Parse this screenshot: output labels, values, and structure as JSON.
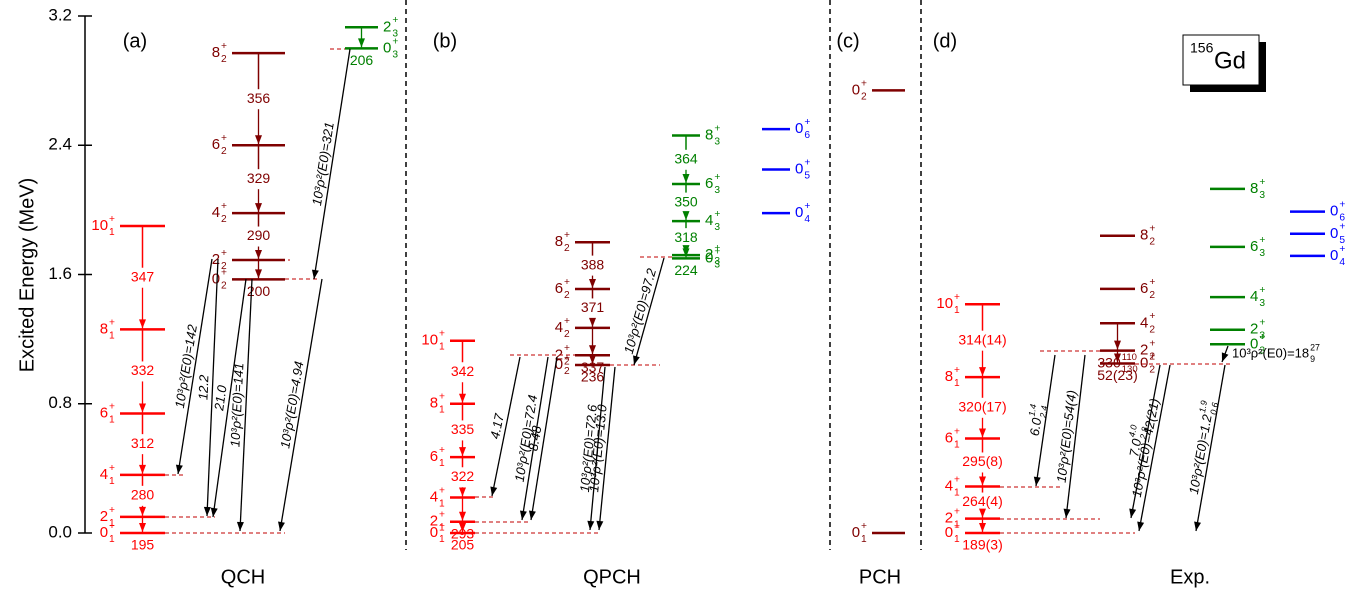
{
  "chart_data": {
    "type": "level-scheme",
    "ylabel": "Excited Energy (MeV)",
    "ylim": [
      0,
      3.2
    ],
    "yticks": [
      {
        "value": 0,
        "label": "0.0"
      },
      {
        "value": 0.8,
        "label": "0.8"
      },
      {
        "value": 1.6,
        "label": "1.6"
      },
      {
        "value": 2.4,
        "label": "2.4"
      },
      {
        "value": 3.2,
        "label": "3.2"
      }
    ],
    "nucleus": {
      "mass": "156",
      "symbol": "Gd"
    },
    "panels": [
      {
        "tag": "(a)",
        "name": "QCH",
        "bands": [
          {
            "color": "#ff0000",
            "levels": [
              {
                "j": "0",
                "p": "+",
                "k": "1",
                "energy": 0
              },
              {
                "j": "2",
                "p": "+",
                "k": "1",
                "energy": 0.1
              },
              {
                "j": "4",
                "p": "+",
                "k": "1",
                "energy": 0.36
              },
              {
                "j": "6",
                "p": "+",
                "k": "1",
                "energy": 0.74
              },
              {
                "j": "8",
                "p": "+",
                "k": "1",
                "energy": 1.26
              },
              {
                "j": "10",
                "p": "+",
                "k": "1",
                "energy": 1.9
              }
            ],
            "transitions": [
              {
                "text": "195"
              },
              {
                "text": "280"
              },
              {
                "text": "312"
              },
              {
                "text": "332"
              },
              {
                "text": "347"
              }
            ]
          },
          {
            "color": "#7f0000",
            "levels": [
              {
                "j": "0",
                "p": "+",
                "k": "2",
                "energy": 1.57
              },
              {
                "j": "2",
                "p": "+",
                "k": "2",
                "energy": 1.69
              },
              {
                "j": "4",
                "p": "+",
                "k": "2",
                "energy": 1.98
              },
              {
                "j": "6",
                "p": "+",
                "k": "2",
                "energy": 2.4
              },
              {
                "j": "8",
                "p": "+",
                "k": "2",
                "energy": 2.97
              }
            ],
            "transitions": [
              {
                "text": "200"
              },
              {
                "text": "290"
              },
              {
                "text": "329"
              },
              {
                "text": "356"
              }
            ]
          },
          {
            "color": "#008000",
            "levels": [
              {
                "j": "0",
                "p": "+",
                "k": "3",
                "energy": 3.0
              },
              {
                "j": "2",
                "p": "+",
                "k": "3",
                "energy": 3.13
              }
            ],
            "transitions": [
              {
                "text": "206"
              }
            ]
          }
        ],
        "e0": [
          {
            "text": "10³ρ²(E0)=142"
          },
          {
            "text": "12.2"
          },
          {
            "text": "21.0"
          },
          {
            "text": "10³ρ²(E0)=141"
          },
          {
            "text": "10³ρ²(E0)=4.94"
          },
          {
            "text": "10³ρ²(E0)=321"
          }
        ]
      },
      {
        "tag": "(b)",
        "name": "QPCH",
        "bands": [
          {
            "color": "#ff0000",
            "levels": [
              {
                "j": "0",
                "p": "+",
                "k": "1",
                "energy": 0
              },
              {
                "j": "2",
                "p": "+",
                "k": "1",
                "energy": 0.07
              },
              {
                "j": "4",
                "p": "+",
                "k": "1",
                "energy": 0.22
              },
              {
                "j": "6",
                "p": "+",
                "k": "1",
                "energy": 0.47
              },
              {
                "j": "8",
                "p": "+",
                "k": "1",
                "energy": 0.8
              },
              {
                "j": "10",
                "p": "+",
                "k": "1",
                "energy": 1.19
              }
            ],
            "transitions": [
              {
                "text": "205"
              },
              {
                "text": "293"
              },
              {
                "text": "322"
              },
              {
                "text": "335"
              },
              {
                "text": "342"
              }
            ]
          },
          {
            "color": "#7f0000",
            "levels": [
              {
                "j": "0",
                "p": "+",
                "k": "2",
                "energy": 1.04
              },
              {
                "j": "2",
                "p": "+",
                "k": "2",
                "energy": 1.1
              },
              {
                "j": "4",
                "p": "+",
                "k": "2",
                "energy": 1.27
              },
              {
                "j": "6",
                "p": "+",
                "k": "2",
                "energy": 1.51
              },
              {
                "j": "8",
                "p": "+",
                "k": "2",
                "energy": 1.8
              }
            ],
            "transitions": [
              {
                "text": "236"
              },
              {
                "text": "337"
              },
              {
                "text": "371"
              },
              {
                "text": "388"
              }
            ]
          },
          {
            "color": "#008000",
            "levels": [
              {
                "j": "0",
                "p": "+",
                "k": "3",
                "energy": 1.7
              },
              {
                "j": "2",
                "p": "+",
                "k": "3",
                "energy": 1.72
              },
              {
                "j": "4",
                "p": "+",
                "k": "3",
                "energy": 1.93
              },
              {
                "j": "6",
                "p": "+",
                "k": "3",
                "energy": 2.16
              },
              {
                "j": "8",
                "p": "+",
                "k": "3",
                "energy": 2.46
              }
            ],
            "transitions": [
              {
                "text": "224"
              },
              {
                "text": "318"
              },
              {
                "text": "350"
              },
              {
                "text": "364"
              }
            ]
          },
          {
            "color": "#0000ff",
            "levels": [
              {
                "j": "0",
                "p": "+",
                "k": "4",
                "energy": 1.98
              },
              {
                "j": "0",
                "p": "+",
                "k": "5",
                "energy": 2.25
              },
              {
                "j": "0",
                "p": "+",
                "k": "6",
                "energy": 2.5
              }
            ],
            "transitions": []
          }
        ],
        "e0": [
          {
            "text": "4.17"
          },
          {
            "text": "10³ρ²(E0)=72.4"
          },
          {
            "text": "8.48"
          },
          {
            "text": "10³ρ²(E0)=72.6"
          },
          {
            "text": "10³ρ²(E0)=13.0"
          },
          {
            "text": "10³ρ²(E0)=97.2"
          }
        ]
      },
      {
        "tag": "(c)",
        "name": "PCH",
        "bands": [
          {
            "color": "#7f0000",
            "levels": [
              {
                "j": "0",
                "p": "+",
                "k": "1",
                "energy": 0
              },
              {
                "j": "0",
                "p": "+",
                "k": "2",
                "energy": 2.74
              }
            ],
            "transitions": []
          }
        ],
        "e0": []
      },
      {
        "tag": "(d)",
        "name": "Exp.",
        "bands": [
          {
            "color": "#ff0000",
            "levels": [
              {
                "j": "0",
                "p": "+",
                "k": "1",
                "energy": 0
              },
              {
                "j": "2",
                "p": "+",
                "k": "1",
                "energy": 0.089
              },
              {
                "j": "4",
                "p": "+",
                "k": "1",
                "energy": 0.288
              },
              {
                "j": "6",
                "p": "+",
                "k": "1",
                "energy": 0.585
              },
              {
                "j": "8",
                "p": "+",
                "k": "1",
                "energy": 0.965
              },
              {
                "j": "10",
                "p": "+",
                "k": "1",
                "energy": 1.416
              }
            ],
            "transitions": [
              {
                "text": "189(3)"
              },
              {
                "text": "264(4)"
              },
              {
                "text": "295(8)"
              },
              {
                "text": "320(17)"
              },
              {
                "text": "314(14)"
              }
            ]
          },
          {
            "color": "#7f0000",
            "levels": [
              {
                "j": "0",
                "p": "+",
                "k": "2",
                "energy": 1.049
              },
              {
                "j": "2",
                "p": "+",
                "k": "2",
                "energy": 1.129
              },
              {
                "j": "4",
                "p": "+",
                "k": "2",
                "energy": 1.298
              },
              {
                "j": "6",
                "p": "+",
                "k": "2",
                "energy": 1.511
              },
              {
                "j": "8",
                "p": "+",
                "k": "2",
                "energy": 1.84
              }
            ],
            "transitions": [
              {
                "text": "52(23)"
              },
              {
                "text": "330",
                "sup": "110",
                "sub": "130"
              }
            ]
          },
          {
            "color": "#008000",
            "levels": [
              {
                "j": "0",
                "p": "+",
                "k": "3",
                "energy": 1.168
              },
              {
                "j": "2",
                "p": "+",
                "k": "3",
                "energy": 1.258
              },
              {
                "j": "4",
                "p": "+",
                "k": "3",
                "energy": 1.46
              },
              {
                "j": "6",
                "p": "+",
                "k": "3",
                "energy": 1.771
              },
              {
                "j": "8",
                "p": "+",
                "k": "3",
                "energy": 2.13
              }
            ],
            "transitions": []
          },
          {
            "color": "#0000ff",
            "levels": [
              {
                "j": "0",
                "p": "+",
                "k": "4",
                "energy": 1.715
              },
              {
                "j": "0",
                "p": "+",
                "k": "5",
                "energy": 1.852
              },
              {
                "j": "0",
                "p": "+",
                "k": "6",
                "energy": 1.989
              }
            ],
            "transitions": []
          }
        ],
        "e0": [
          {
            "text": "6.0",
            "sup": "1.4",
            "sub": "2.4"
          },
          {
            "text": "10³ρ²(E0)=54(4)"
          },
          {
            "text": "7.0",
            "sup": "4.0",
            "sub": "2.8"
          },
          {
            "text": "10³ρ²(E0)=42(21)"
          },
          {
            "text": "10³ρ²(E0)=1.2",
            "sup": "1.9",
            "sub": "0.6"
          },
          {
            "text": "10³ρ²(E0)=18",
            "sup": "27",
            "sub": "9"
          }
        ]
      }
    ]
  }
}
